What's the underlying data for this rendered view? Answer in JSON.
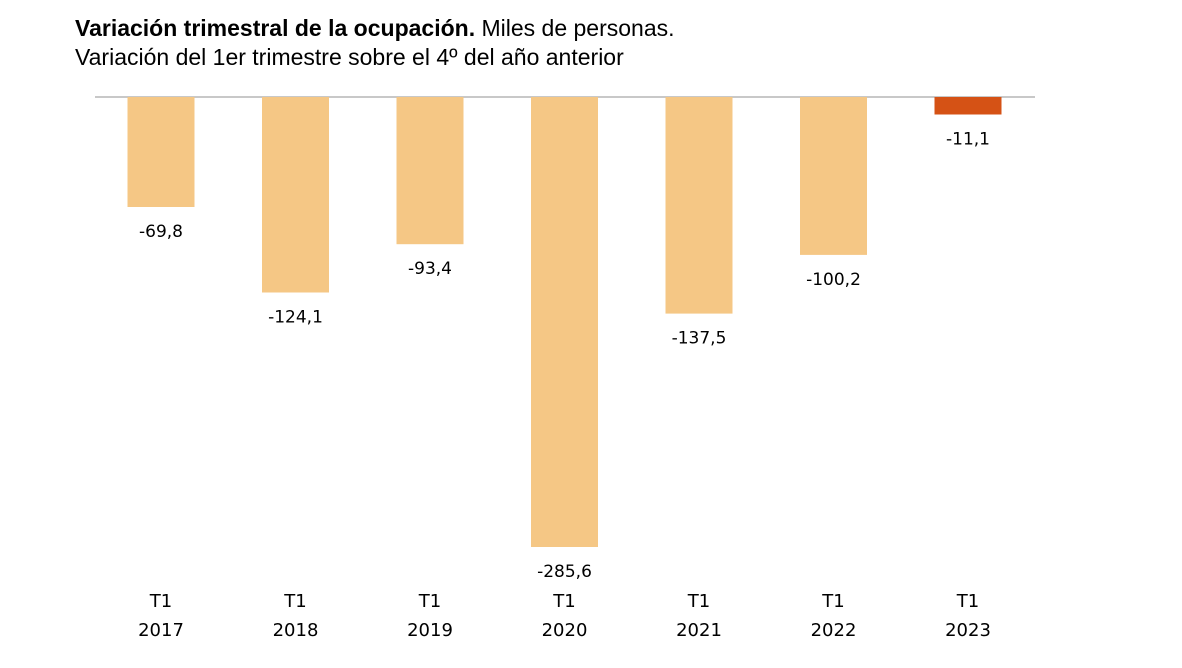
{
  "chart_data": {
    "type": "bar",
    "title": "Variación trimestral de la ocupación.",
    "title_suffix": "Miles de personas.",
    "subtitle": "Variación del 1er trimestre sobre el 4º del año anterior",
    "categories": [
      {
        "quarter": "T1",
        "year": "2017"
      },
      {
        "quarter": "T1",
        "year": "2018"
      },
      {
        "quarter": "T1",
        "year": "2019"
      },
      {
        "quarter": "T1",
        "year": "2020"
      },
      {
        "quarter": "T1",
        "year": "2021"
      },
      {
        "quarter": "T1",
        "year": "2022"
      },
      {
        "quarter": "T1",
        "year": "2023"
      }
    ],
    "values": [
      -69.8,
      -124.1,
      -93.4,
      -285.6,
      -137.5,
      -100.2,
      -11.1
    ],
    "value_labels": [
      "-69,8",
      "-124,1",
      "-93,4",
      "-285,6",
      "-137,5",
      "-100,2",
      "-11,1"
    ],
    "highlight_index": 6,
    "colors": {
      "bar": "#F5C785",
      "highlight": "#D55215",
      "axis": "#A6A6A6"
    },
    "ylim": [
      -285.6,
      0
    ],
    "grid": false,
    "legend": "none"
  }
}
